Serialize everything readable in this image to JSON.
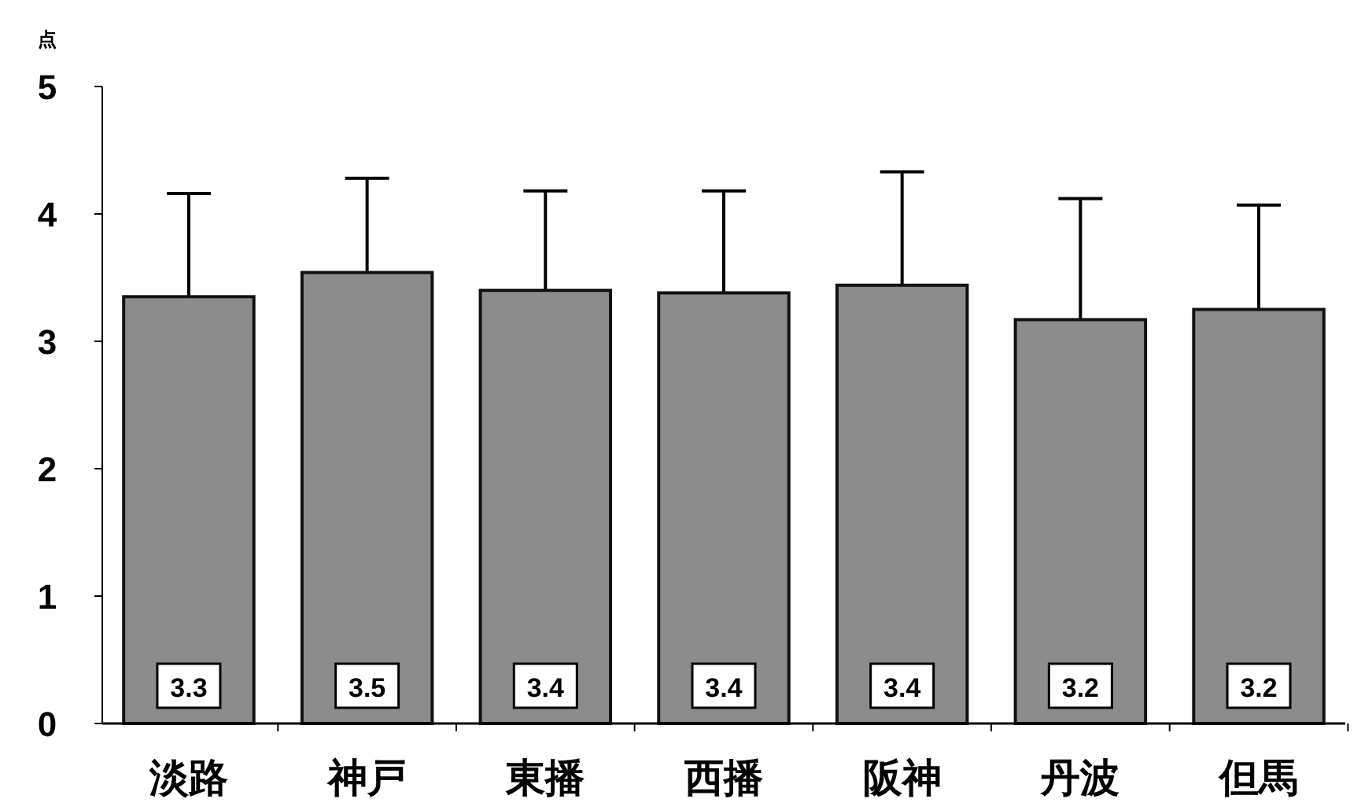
{
  "chart_data": {
    "type": "bar",
    "ylabel": "点",
    "categories": [
      "淡路",
      "神戸",
      "東播",
      "西播",
      "阪神",
      "丹波",
      "但馬"
    ],
    "values": [
      3.35,
      3.54,
      3.4,
      3.38,
      3.44,
      3.17,
      3.25
    ],
    "value_labels": [
      "3.3",
      "3.5",
      "3.4",
      "3.4",
      "3.4",
      "3.2",
      "3.2"
    ],
    "errors": [
      0.81,
      0.74,
      0.78,
      0.8,
      0.89,
      0.95,
      0.82
    ],
    "color": "#8c8c8c",
    "ylim": [
      0,
      5
    ],
    "yticks": [
      0,
      1,
      2,
      3,
      4,
      5
    ],
    "grid": false
  }
}
